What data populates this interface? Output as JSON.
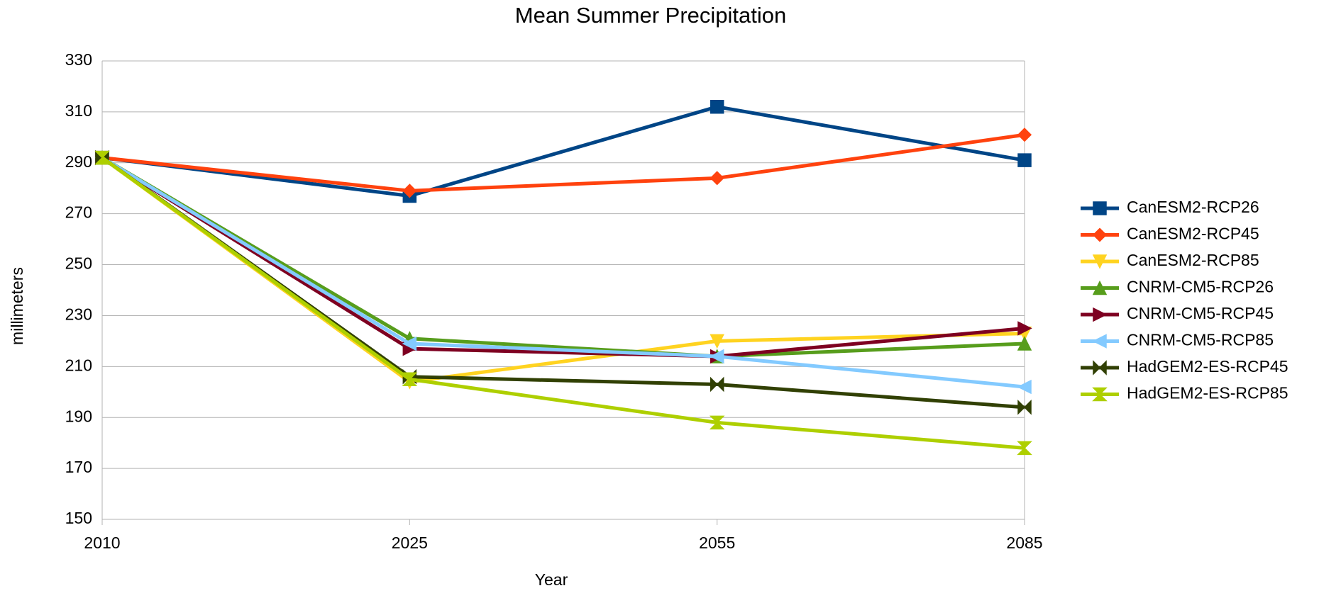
{
  "chart_data": {
    "type": "line",
    "title": "Mean Summer Precipitation",
    "x_label": "Year",
    "y_label": "millimeters",
    "categories": [
      "2010",
      "2025",
      "2055",
      "2085"
    ],
    "ylim": [
      150,
      330
    ],
    "yticks": [
      150,
      170,
      190,
      210,
      230,
      250,
      270,
      290,
      310,
      330
    ],
    "grid": true,
    "legend": "right",
    "series": [
      {
        "name": "CanESM2-RCP26",
        "color": "#004586",
        "marker": "square",
        "values": [
          292,
          277,
          312,
          291
        ]
      },
      {
        "name": "CanESM2-RCP45",
        "color": "#ff420e",
        "marker": "diamond",
        "values": [
          292,
          279,
          284,
          301
        ]
      },
      {
        "name": "CanESM2-RCP85",
        "color": "#ffd320",
        "marker": "triangle-down",
        "values": [
          292,
          204,
          220,
          223
        ]
      },
      {
        "name": "CNRM-CM5-RCP26",
        "color": "#579d1c",
        "marker": "triangle-up",
        "values": [
          292,
          221,
          214,
          219
        ]
      },
      {
        "name": "CNRM-CM5-RCP45",
        "color": "#7e0021",
        "marker": "triangle-right",
        "values": [
          292,
          217,
          214,
          225
        ]
      },
      {
        "name": "CNRM-CM5-RCP85",
        "color": "#83caff",
        "marker": "triangle-left",
        "values": [
          292,
          219,
          214,
          202
        ]
      },
      {
        "name": "HadGEM2-ES-RCP45",
        "color": "#314004",
        "marker": "bowtie",
        "values": [
          292,
          206,
          203,
          194
        ]
      },
      {
        "name": "HadGEM2-ES-RCP85",
        "color": "#aecf00",
        "marker": "hourglass",
        "values": [
          292,
          205,
          188,
          178
        ]
      }
    ]
  }
}
